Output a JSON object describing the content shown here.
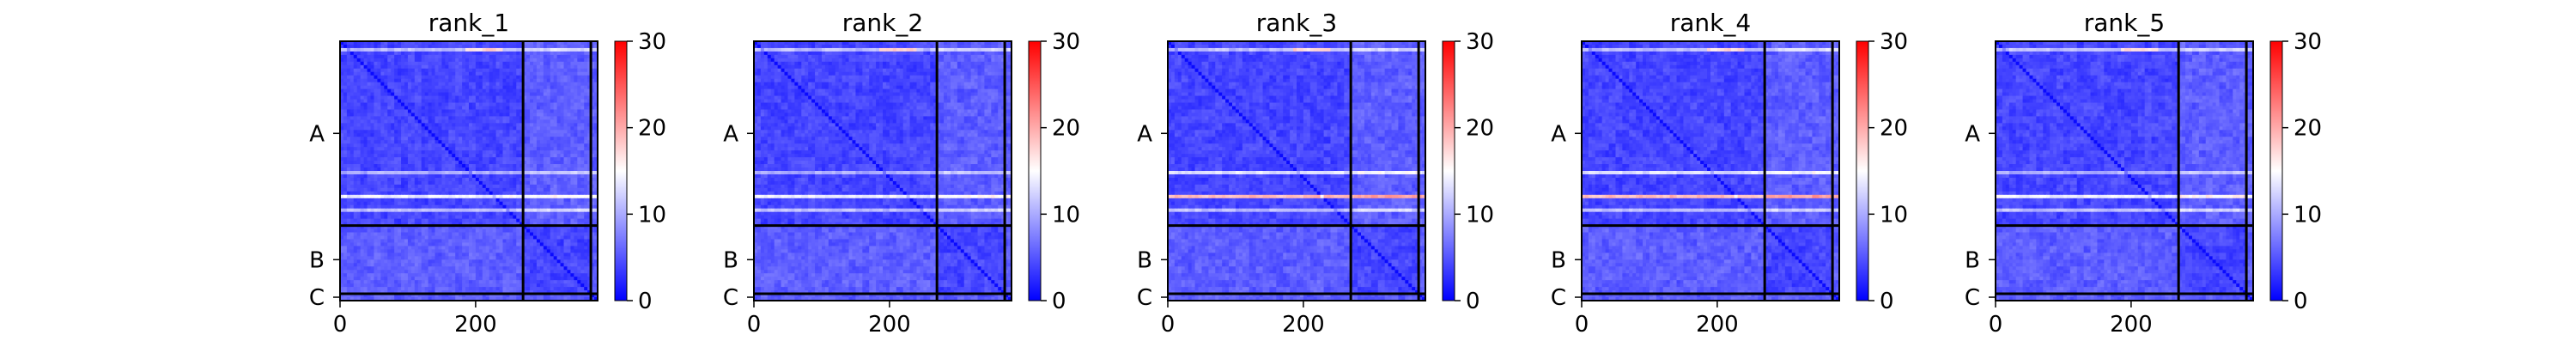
{
  "chart_data": {
    "type": "heatmap",
    "figure": "PAE",
    "colorbar": {
      "min": 0,
      "max": 30,
      "ticks": [
        0,
        10,
        20,
        30
      ],
      "colormap": "bwr"
    },
    "chains": [
      {
        "label": "A",
        "start": 0,
        "end": 270
      },
      {
        "label": "B",
        "start": 270,
        "end": 370
      },
      {
        "label": "C",
        "start": 370,
        "end": 380
      }
    ],
    "x_ticks": [
      0,
      200
    ],
    "total_length": 380,
    "panels": [
      {
        "title": "rank_1"
      },
      {
        "title": "rank_2"
      },
      {
        "title": "rank_3"
      },
      {
        "title": "rank_4"
      },
      {
        "title": "rank_5"
      }
    ]
  }
}
